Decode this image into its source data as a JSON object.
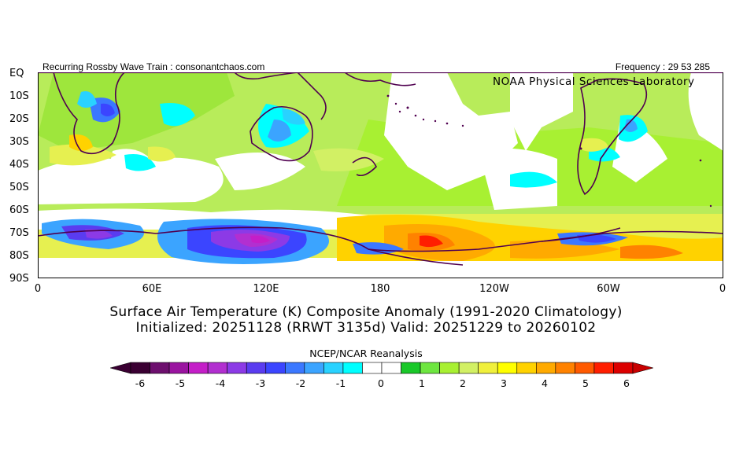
{
  "header": {
    "left": "Recurring Rossby Wave Train : consonantchaos.com",
    "right": "Frequency : 29 53 285"
  },
  "map": {
    "source_label": "NOAA Physical Sciences Laboratory",
    "lat_labels": [
      "EQ",
      "10S",
      "20S",
      "30S",
      "40S",
      "50S",
      "60S",
      "70S",
      "80S",
      "90S"
    ],
    "lon_labels": [
      "0",
      "60E",
      "120E",
      "180",
      "120W",
      "60W",
      "0"
    ]
  },
  "title": {
    "line1": "Surface Air Temperature (K) Composite Anomaly (1991-2020 Climatology)",
    "line2": "Initialized: 20251128 (RRWT 3135d) Valid: 20251229 to 20260102"
  },
  "colorbar": {
    "title": "NCEP/NCAR Reanalysis",
    "ticks": [
      "-6",
      "-5",
      "-4",
      "-3",
      "-2",
      "-1",
      "0",
      "1",
      "2",
      "3",
      "4",
      "5",
      "6"
    ],
    "colors": [
      "#3a0032",
      "#6d0f6e",
      "#9a14a0",
      "#c41ec8",
      "#b22fd0",
      "#8c3ae6",
      "#5a3cf0",
      "#3b45ff",
      "#3b78ff",
      "#3ba4ff",
      "#29d2ff",
      "#00ffff",
      "#ffffff",
      "#ffffff",
      "#19c829",
      "#6ee640",
      "#a8f032",
      "#d2f064",
      "#f0f03c",
      "#ffff00",
      "#ffd200",
      "#ffaa00",
      "#ff8200",
      "#ff5a00",
      "#ff1e00",
      "#dc0000"
    ]
  }
}
